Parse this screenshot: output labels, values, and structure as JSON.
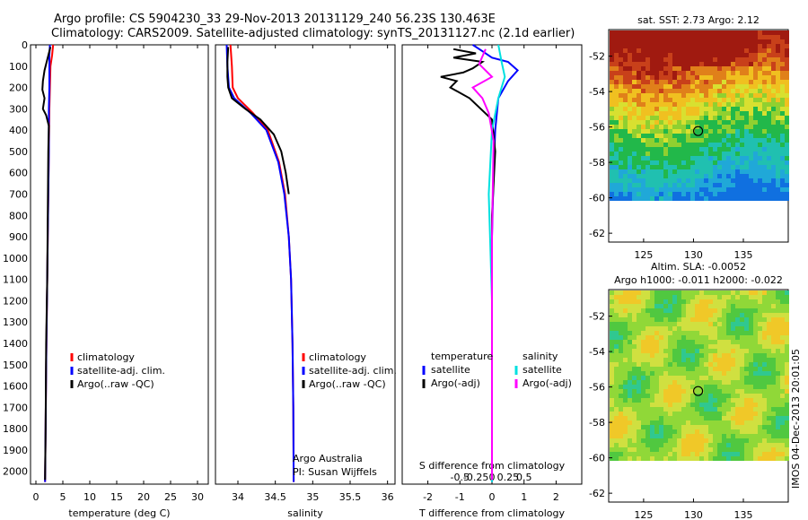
{
  "header": {
    "line1": "Argo profile: CS 5904230_33 29-Nov-2013 20131129_240 56.23S 130.463E",
    "line2": "Climatology: CARS2009. Satellite-adjusted climatology: synTS_20131127.nc (2.1d earlier)"
  },
  "chart_data": [
    {
      "type": "line",
      "xlabel": "temperature (deg C)",
      "ylabel": "",
      "xlim": [
        -1,
        32
      ],
      "ylim": [
        2060,
        0
      ],
      "xticks": [
        "0",
        "5",
        "10",
        "15",
        "20",
        "25",
        "30"
      ],
      "yticks": [
        "0",
        "100",
        "200",
        "300",
        "400",
        "500",
        "600",
        "700",
        "800",
        "900",
        "1000",
        "1100",
        "1200",
        "1300",
        "1400",
        "1500",
        "1600",
        "1700",
        "1800",
        "1900",
        "2000"
      ],
      "legend": [
        "climatology",
        "satellite-adj. clim.",
        "Argo(..raw -QC)"
      ],
      "legend_position": "center",
      "series": [
        {
          "name": "climatology",
          "color": "#ff0000",
          "x": [
            3.2,
            3.0,
            2.7,
            2.6,
            2.5,
            2.4,
            2.3,
            2.2,
            2.1,
            2.0,
            1.9,
            1.8,
            1.7
          ],
          "y": [
            0,
            50,
            100,
            200,
            300,
            500,
            700,
            900,
            1100,
            1300,
            1500,
            1800,
            2050
          ]
        },
        {
          "name": "satellite-adj. clim.",
          "color": "#0000ff",
          "x": [
            2.6,
            2.5,
            2.5,
            2.5,
            2.4,
            2.4,
            2.3,
            2.2,
            2.1,
            2.0,
            1.9,
            1.8,
            1.7
          ],
          "y": [
            0,
            50,
            100,
            200,
            300,
            500,
            700,
            900,
            1100,
            1300,
            1500,
            1800,
            2050
          ]
        },
        {
          "name": "Argo(..raw -QC)",
          "color": "#000000",
          "x": [
            2.7,
            2.2,
            1.6,
            1.3,
            1.2,
            1.6,
            1.3,
            1.9,
            2.4,
            2.3,
            2.2,
            2.1,
            1.9,
            1.8,
            1.7
          ],
          "y": [
            10,
            60,
            120,
            170,
            210,
            250,
            300,
            330,
            380,
            500,
            800,
            1100,
            1400,
            1800,
            2040
          ]
        }
      ]
    },
    {
      "type": "line",
      "xlabel": "salinity",
      "ylabel": "",
      "xlim": [
        33.7,
        36.1
      ],
      "ylim": [
        2060,
        0
      ],
      "xticks": [
        "34",
        "34.5",
        "35",
        "35.5",
        "36"
      ],
      "legend": [
        "climatology",
        "satellite-adj. clim.",
        "Argo(..raw -QC)"
      ],
      "legend_position": "center",
      "annotation": [
        "Argo Australia",
        "PI: Susan Wijffels"
      ],
      "series": [
        {
          "name": "climatology",
          "color": "#ff0000",
          "x": [
            33.9,
            33.92,
            33.93,
            34.0,
            34.2,
            34.4,
            34.55,
            34.63,
            34.68,
            34.71,
            34.73,
            34.74,
            34.745
          ],
          "y": [
            0,
            100,
            200,
            250,
            320,
            400,
            550,
            700,
            900,
            1100,
            1400,
            1700,
            2050
          ]
        },
        {
          "name": "satellite-adj. clim.",
          "color": "#0000ff",
          "x": [
            33.85,
            33.86,
            33.88,
            33.95,
            34.17,
            34.38,
            34.54,
            34.62,
            34.68,
            34.71,
            34.73,
            34.74,
            34.745
          ],
          "y": [
            0,
            100,
            200,
            250,
            320,
            400,
            550,
            700,
            900,
            1100,
            1400,
            1700,
            2050
          ]
        },
        {
          "name": "Argo(..raw -QC)",
          "color": "#000000",
          "x": [
            33.87,
            33.86,
            33.86,
            33.87,
            33.92,
            34.1,
            34.3,
            34.48,
            34.58,
            34.64,
            34.68
          ],
          "y": [
            10,
            80,
            150,
            200,
            250,
            300,
            350,
            420,
            500,
            600,
            700
          ]
        }
      ]
    },
    {
      "type": "line",
      "xlabel": "T difference from climatology",
      "ylabel": "",
      "xlim": [
        -2.8,
        2.8
      ],
      "ylim": [
        2060,
        0
      ],
      "xticks": [
        "-2",
        "-1",
        "0",
        "1",
        "2"
      ],
      "secondary_xlabel": "S difference from climatology",
      "secondary_xticks": [
        "-0.5",
        "-0.25",
        "0",
        "0.25",
        "0.5"
      ],
      "legend": [
        "temperature",
        "satellite",
        "Argo(-adj)",
        "salinity",
        "satellite",
        "Argo(-adj)"
      ],
      "legend_position": "center",
      "series": [
        {
          "name": "satellite",
          "color": "#0000ff",
          "x": [
            -0.6,
            -0.3,
            0.0,
            0.5,
            0.8,
            0.5,
            0.2,
            0.1,
            0.05,
            0.0,
            0.0,
            0.0
          ],
          "y": [
            0,
            30,
            60,
            80,
            120,
            170,
            250,
            400,
            600,
            900,
            1400,
            2050
          ]
        },
        {
          "name": "Argo(-adj)",
          "color": "#000000",
          "x": [
            -1.2,
            -0.5,
            -1.2,
            -0.3,
            -0.6,
            -0.9,
            -1.6,
            -1.1,
            -1.3,
            -0.7,
            0.0,
            0.1,
            0.0,
            0.0,
            0.0
          ],
          "y": [
            20,
            40,
            60,
            80,
            110,
            130,
            150,
            170,
            200,
            250,
            350,
            500,
            800,
            1200,
            2040
          ]
        },
        {
          "name": "satellite",
          "color": "#00e0e0",
          "x": [
            0.2,
            0.3,
            0.4,
            0.2,
            0.0,
            -0.1,
            0.0,
            0.0
          ],
          "y": [
            0,
            80,
            150,
            250,
            400,
            700,
            1200,
            2050
          ]
        },
        {
          "name": "Argo(-adj)",
          "color": "#ff00ff",
          "x": [
            -0.2,
            -0.4,
            0.0,
            -0.6,
            -0.3,
            -0.1,
            0.05,
            0.0,
            0.0
          ],
          "y": [
            20,
            90,
            150,
            200,
            250,
            320,
            450,
            900,
            2040
          ]
        }
      ]
    },
    {
      "type": "heatmap",
      "title": "sat. SST: 2.73 Argo: 2.12",
      "xlim": [
        121.5,
        139.5
      ],
      "ylim": [
        -62.5,
        -50.5
      ],
      "xticks": [
        "125",
        "130",
        "135"
      ],
      "yticks": [
        "-52",
        "-54",
        "-56",
        "-58",
        "-60",
        "-62"
      ],
      "marker": {
        "lon": 130.463,
        "lat": -56.23
      }
    },
    {
      "type": "heatmap",
      "title_lines": [
        "Altim. SLA: -0.0052",
        "Argo h1000: -0.011 h2000: -0.022"
      ],
      "xlim": [
        121.5,
        139.5
      ],
      "ylim": [
        -62.5,
        -50.5
      ],
      "xticks": [
        "125",
        "130",
        "135"
      ],
      "yticks": [
        "-52",
        "-54",
        "-56",
        "-58",
        "-60",
        "-62"
      ],
      "marker": {
        "lon": 130.463,
        "lat": -56.23
      }
    }
  ],
  "side_stamp": "IMOS 04-Dec-2013 20:01:05",
  "colors": {
    "climatology": "#ff0000",
    "satellite": "#0000ff",
    "argo": "#000000",
    "sal_satellite": "#00e0e0",
    "sal_argo": "#ff00ff"
  }
}
